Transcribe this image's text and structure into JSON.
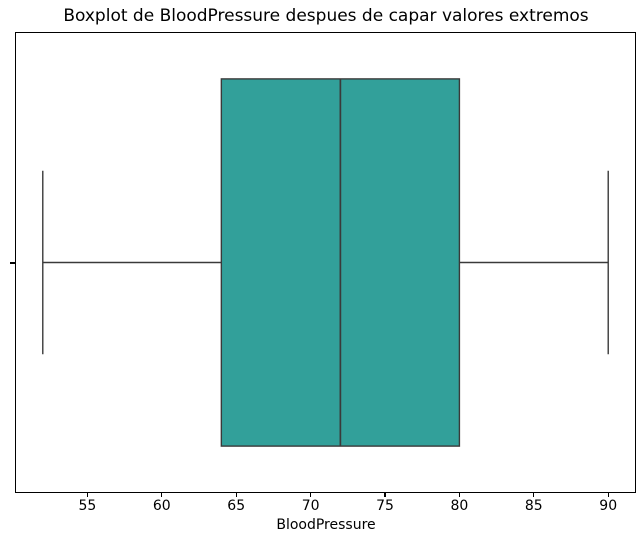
{
  "chart_data": {
    "type": "boxplot",
    "orientation": "horizontal",
    "title": "Boxplot de BloodPressure despues de capar valores extremos",
    "xlabel": "BloodPressure",
    "ylabel": "",
    "x_ticks": [
      55,
      60,
      65,
      70,
      75,
      80,
      85,
      90
    ],
    "xlim": [
      50.2,
      91.8
    ],
    "grid": false,
    "legend": "none",
    "series": [
      {
        "name": "BloodPressure",
        "whisker_low": 52,
        "q1": 64,
        "median": 72,
        "q3": 80,
        "whisker_high": 90,
        "outliers": []
      }
    ],
    "colors": {
      "box_fill": "#32a09a",
      "box_edge": "#3a3a3a",
      "whisker": "#3a3a3a",
      "median": "#3a3a3a",
      "spine": "#000000",
      "text": "#000000"
    }
  }
}
